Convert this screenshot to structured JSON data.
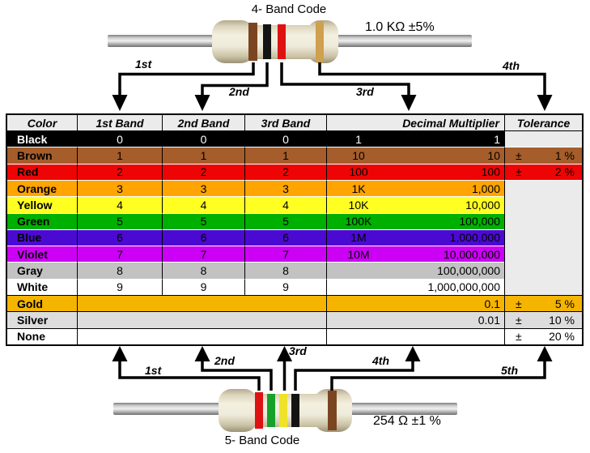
{
  "top": {
    "title": "4- Band Code",
    "value_label": "1.0 KΩ  ±5%",
    "arrow_labels": [
      "1st",
      "2nd",
      "3rd",
      "4th"
    ],
    "band_colors": [
      "brown",
      "black",
      "red",
      "gold"
    ]
  },
  "bottom": {
    "title": "5- Band Code",
    "value_label": "254 Ω  ±1 %",
    "arrow_labels": [
      "1st",
      "2nd",
      "3rd",
      "4th",
      "5th"
    ],
    "band_colors": [
      "red",
      "green",
      "yellow",
      "black",
      "brown"
    ]
  },
  "table": {
    "headers": [
      "Color",
      "1st Band",
      "2nd Band",
      "3rd Band",
      "Decimal Multiplier",
      "Tolerance"
    ],
    "plus_minus": "±",
    "rows": [
      {
        "color": "Black",
        "bg": "#000000",
        "fg": "#FFFFFF",
        "bands": [
          "0",
          "0",
          "0"
        ],
        "mult_short": "1",
        "mult_long": "1",
        "tol_type": "empty"
      },
      {
        "color": "Brown",
        "bg": "#A55D2B",
        "bands": [
          "1",
          "1",
          "1"
        ],
        "mult_short": "10",
        "mult_long": "10",
        "tol_type": "value",
        "tol_value": "1 %"
      },
      {
        "color": "Red",
        "bg": "#EE0404",
        "bands": [
          "2",
          "2",
          "2"
        ],
        "mult_short": "100",
        "mult_long": "100",
        "tol_type": "value",
        "tol_value": "2 %"
      },
      {
        "color": "Orange",
        "bg": "#FFA400",
        "bands": [
          "3",
          "3",
          "3"
        ],
        "mult_short": "1K",
        "mult_long": "1,000",
        "tol_type": "merged",
        "tol_span": 7
      },
      {
        "color": "Yellow",
        "bg": "#FFFF22",
        "bands": [
          "4",
          "4",
          "4"
        ],
        "mult_short": "10K",
        "mult_long": "10,000",
        "tol_type": "none"
      },
      {
        "color": "Green",
        "bg": "#00B000",
        "bands": [
          "5",
          "5",
          "5"
        ],
        "mult_short": "100K",
        "mult_long": "100,000",
        "tol_type": "none"
      },
      {
        "color": "Blue",
        "bg": "#4B0AD2",
        "bands": [
          "6",
          "6",
          "6"
        ],
        "mult_short": "1M",
        "mult_long": "1,000,000",
        "tol_type": "none"
      },
      {
        "color": "Violet",
        "bg": "#CC00F5",
        "bands": [
          "7",
          "7",
          "7"
        ],
        "mult_short": "10M",
        "mult_long": "10,000,000",
        "tol_type": "none"
      },
      {
        "color": "Gray",
        "bg": "#C2C2C2",
        "bands": [
          "8",
          "8",
          "8"
        ],
        "mult_short": "",
        "mult_long": "100,000,000",
        "tol_type": "none"
      },
      {
        "color": "White",
        "bg": "#FFFFFF",
        "bands": [
          "9",
          "9",
          "9"
        ],
        "mult_short": "",
        "mult_long": "1,000,000,000",
        "tol_type": "none"
      },
      {
        "color": "Gold",
        "bg": "#F4B400",
        "bands_merged": true,
        "mult_short": "",
        "mult_long": "0.1",
        "tol_type": "value",
        "tol_value": "5 %",
        "dark_sep": true
      },
      {
        "color": "Silver",
        "bg": "#DDDDDD",
        "bands_merged": true,
        "mult_short": "",
        "mult_long": "0.01",
        "tol_type": "value",
        "tol_value": "10 %",
        "dark_sep": true
      },
      {
        "color": "None",
        "bg": "#FFFFFF",
        "bands_merged": true,
        "mult_short": "",
        "mult_long": "",
        "tol_type": "value",
        "tol_value": "20 %",
        "dark_sep": true
      }
    ]
  },
  "colors": {
    "header_bg": "#EBEBEB",
    "empty_tolerance_bg": "#EBEBEB",
    "band_palette": {
      "brown": "#7C4521",
      "black": "#141414",
      "red": "#DE1212",
      "gold": "#CFA04F",
      "green": "#17A02A",
      "yellow": "#EFE32A"
    }
  }
}
